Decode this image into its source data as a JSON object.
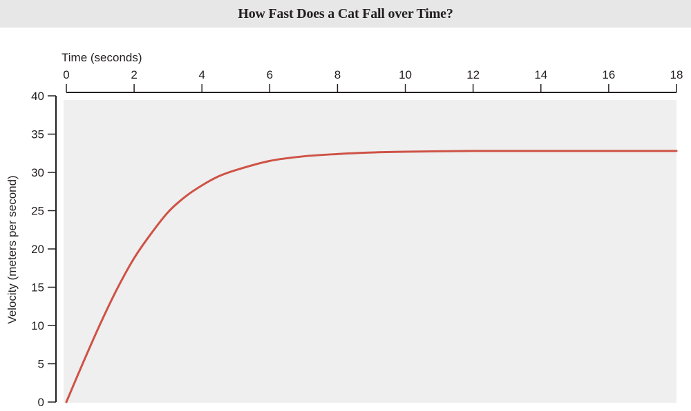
{
  "title": "How Fast Does a Cat Fall over Time?",
  "colors": {
    "title_bg": "#e6e7e6",
    "plot_bg": "#eeefee",
    "line": "#cf5246",
    "axis": "#231f20"
  },
  "chart_data": {
    "type": "line",
    "title": "How Fast Does a Cat Fall over Time?",
    "xlabel": "Time (seconds)",
    "ylabel": "Velocity (meters per second)",
    "x_axis_position": "top",
    "xlim": [
      0,
      18
    ],
    "ylim": [
      0,
      40
    ],
    "x_ticks": [
      0,
      2,
      4,
      6,
      8,
      10,
      12,
      14,
      16,
      18
    ],
    "y_ticks": [
      0,
      5,
      10,
      15,
      20,
      25,
      30,
      35,
      40
    ],
    "grid": false,
    "legend": null,
    "series": [
      {
        "name": "Velocity",
        "x": [
          0,
          0.5,
          1,
          1.5,
          2,
          2.5,
          3,
          3.5,
          4,
          4.5,
          5,
          6,
          7,
          8,
          9,
          10,
          12,
          14,
          16,
          18
        ],
        "y": [
          0,
          5.2,
          10.2,
          14.8,
          18.8,
          22.0,
          24.8,
          26.8,
          28.3,
          29.5,
          30.3,
          31.5,
          32.1,
          32.4,
          32.6,
          32.7,
          32.8,
          32.8,
          32.8,
          32.8
        ]
      }
    ]
  }
}
